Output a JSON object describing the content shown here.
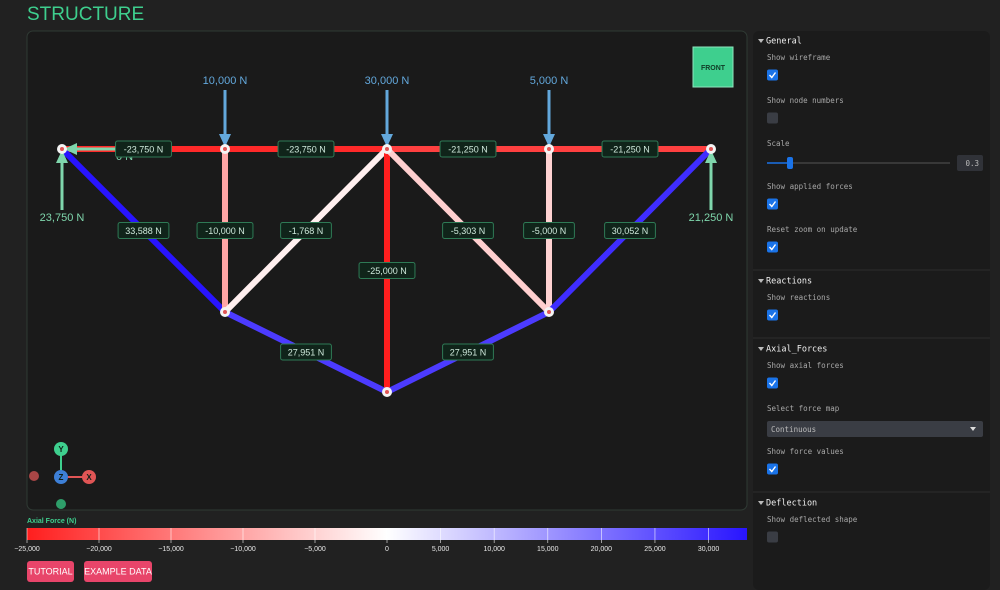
{
  "title": "STRUCTURE",
  "viewport": {
    "view_button": "FRONT",
    "axes": [
      "Y",
      "Z",
      "X"
    ],
    "loads": [
      "10,000 N",
      "30,000 N",
      "5,000 N"
    ],
    "reactions": [
      "23,750 N",
      "21,250 N",
      "0 N"
    ],
    "members": [
      {
        "label": "-23,750 N",
        "force": -23750
      },
      {
        "label": "-23,750 N",
        "force": -23750
      },
      {
        "label": "-21,250 N",
        "force": -21250
      },
      {
        "label": "-21,250 N",
        "force": -21250
      },
      {
        "label": "33,588 N",
        "force": 33588
      },
      {
        "label": "-10,000 N",
        "force": -10000
      },
      {
        "label": "-1,768 N",
        "force": -1768
      },
      {
        "label": "-25,000 N",
        "force": -25000
      },
      {
        "label": "-5,303 N",
        "force": -5303
      },
      {
        "label": "-5,000 N",
        "force": -5000
      },
      {
        "label": "30,052 N",
        "force": 30052
      },
      {
        "label": "27,951 N",
        "force": 27951
      },
      {
        "label": "27,951 N",
        "force": 27951
      }
    ]
  },
  "colorbar": {
    "title": "Axial Force (N)",
    "lim": [
      -25000,
      33588
    ],
    "ticks": [
      {
        "value": -25000,
        "label": "−25,000"
      },
      {
        "value": -20000,
        "label": "−20,000"
      },
      {
        "value": -15000,
        "label": "−15,000"
      },
      {
        "value": -10000,
        "label": "−10,000"
      },
      {
        "value": -5000,
        "label": "−5,000"
      },
      0,
      {
        "value": 5000,
        "label": "5,000"
      },
      {
        "value": 10000,
        "label": "10,000"
      },
      {
        "value": 15000,
        "label": "15,000"
      },
      {
        "value": 20000,
        "label": "20,000"
      },
      {
        "value": 25000,
        "label": "25,000"
      },
      {
        "value": 30000,
        "label": "30,000"
      }
    ]
  },
  "buttons": [
    "TUTORIAL",
    "EXAMPLE DATA"
  ],
  "sidebar": [
    {
      "heading": "General",
      "items": [
        {
          "label": "Show wireframe",
          "checked": true
        },
        {
          "label": "Show node numbers",
          "checked": false
        },
        {
          "label": "Scale",
          "value": 0.3
        },
        {
          "label": "Show applied forces",
          "checked": true
        },
        {
          "label": "Reset zoom on update",
          "checked": true
        }
      ]
    },
    {
      "heading": "Reactions",
      "items": [
        {
          "label": "Show reactions",
          "checked": true
        }
      ]
    },
    {
      "heading": "Axial_Forces",
      "items": [
        {
          "label": "Show axial forces",
          "checked": true
        },
        {
          "label": "Select force map",
          "option": "Continuous"
        },
        {
          "label": "Show force values",
          "checked": true
        }
      ]
    },
    {
      "heading": "Deflection",
      "items": [
        {
          "label": "Show deflected shape",
          "checked": false
        }
      ]
    }
  ]
}
